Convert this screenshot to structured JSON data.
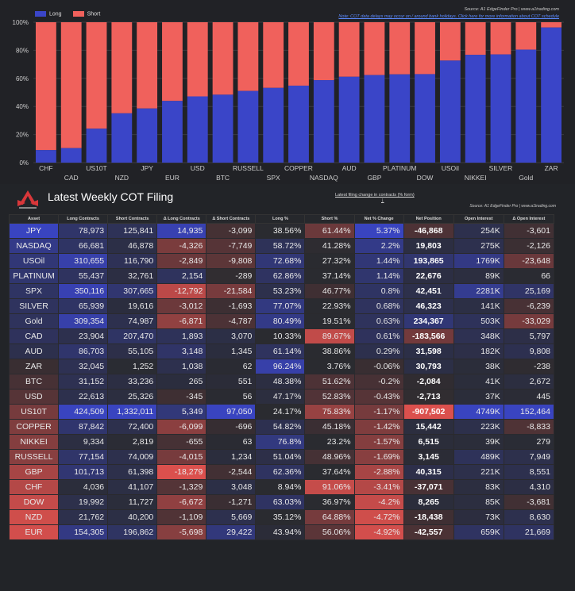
{
  "colors": {
    "long": "#3a45c8",
    "short": "#f0615c",
    "bg": "#212226"
  },
  "chart_data": {
    "type": "bar",
    "stacked": true,
    "categories": [
      "CHF",
      "CAD",
      "US10T",
      "NZD",
      "JPY",
      "EUR",
      "USD",
      "BTC",
      "RUSSELL",
      "SPX",
      "COPPER",
      "NASDAQ",
      "AUD",
      "GBP",
      "PLATINUM",
      "DOW",
      "USOil",
      "NIKKEI",
      "SILVER",
      "Gold",
      "ZAR"
    ],
    "series": [
      {
        "name": "Long",
        "values": [
          8.94,
          10.33,
          24.17,
          35.12,
          38.56,
          43.94,
          47.17,
          48.38,
          51.04,
          53.23,
          54.82,
          58.72,
          61.14,
          62.36,
          62.86,
          63.03,
          72.68,
          76.8,
          77.07,
          80.49,
          96.24
        ]
      },
      {
        "name": "Short",
        "values": [
          91.06,
          89.67,
          75.83,
          64.88,
          61.44,
          56.06,
          52.83,
          51.62,
          48.96,
          46.77,
          45.18,
          41.28,
          38.86,
          37.64,
          37.14,
          36.97,
          27.32,
          23.2,
          22.93,
          19.51,
          3.76
        ]
      }
    ],
    "ylim": [
      0,
      100
    ],
    "yticks": [
      "0%",
      "20%",
      "40%",
      "60%",
      "80%",
      "100%"
    ],
    "legend": [
      "Long",
      "Short"
    ]
  },
  "sources": {
    "chart_source": "Source: A1 EdgeFinder Pro | www.a1trading.com",
    "chart_note": "Note: COT data delays may occur on / around bank holidays. Click here for more information about COT schedule",
    "table_source": "Source: A1 EdgeFinder Pro | www.a1trading.com"
  },
  "table": {
    "title": "Latest Weekly COT Filing",
    "change_note": "Latest filing change in contracts (% form)",
    "arrow": "↓",
    "columns": [
      "Asset",
      "Long Contracts",
      "Short Contracts",
      "Δ Long Contracts",
      "Δ Short Contracts",
      "Long %",
      "Short %",
      "Net % Change",
      "Net Position",
      "Open Interest",
      "Δ Open Interest"
    ],
    "rows": [
      [
        "JPY",
        "78,973",
        "125,841",
        "14,935",
        "-3,099",
        "38.56%",
        "61.44%",
        "5.37%",
        "-46,868",
        "254K",
        "-3,601"
      ],
      [
        "NASDAQ",
        "66,681",
        "46,878",
        "-4,326",
        "-7,749",
        "58.72%",
        "41.28%",
        "2.2%",
        "19,803",
        "275K",
        "-2,126"
      ],
      [
        "USOil",
        "310,655",
        "116,790",
        "-2,849",
        "-9,808",
        "72.68%",
        "27.32%",
        "1.44%",
        "193,865",
        "1769K",
        "-23,648"
      ],
      [
        "PLATINUM",
        "55,437",
        "32,761",
        "2,154",
        "-289",
        "62.86%",
        "37.14%",
        "1.14%",
        "22,676",
        "89K",
        "66"
      ],
      [
        "SPX",
        "350,116",
        "307,665",
        "-12,792",
        "-21,584",
        "53.23%",
        "46.77%",
        "0.8%",
        "42,451",
        "2281K",
        "25,169"
      ],
      [
        "SILVER",
        "65,939",
        "19,616",
        "-3,012",
        "-1,693",
        "77.07%",
        "22.93%",
        "0.68%",
        "46,323",
        "141K",
        "-6,239"
      ],
      [
        "Gold",
        "309,354",
        "74,987",
        "-6,871",
        "-4,787",
        "80.49%",
        "19.51%",
        "0.63%",
        "234,367",
        "503K",
        "-33,029"
      ],
      [
        "CAD",
        "23,904",
        "207,470",
        "1,893",
        "3,070",
        "10.33%",
        "89.67%",
        "0.61%",
        "-183,566",
        "348K",
        "5,797"
      ],
      [
        "AUD",
        "86,703",
        "55,105",
        "3,148",
        "1,345",
        "61.14%",
        "38.86%",
        "0.29%",
        "31,598",
        "182K",
        "9,808"
      ],
      [
        "ZAR",
        "32,045",
        "1,252",
        "1,038",
        "62",
        "96.24%",
        "3.76%",
        "-0.06%",
        "30,793",
        "38K",
        "-238"
      ],
      [
        "BTC",
        "31,152",
        "33,236",
        "265",
        "551",
        "48.38%",
        "51.62%",
        "-0.2%",
        "-2,084",
        "41K",
        "2,672"
      ],
      [
        "USD",
        "22,613",
        "25,326",
        "-345",
        "56",
        "47.17%",
        "52.83%",
        "-0.43%",
        "-2,713",
        "37K",
        "445"
      ],
      [
        "US10T",
        "424,509",
        "1,332,011",
        "5,349",
        "97,050",
        "24.17%",
        "75.83%",
        "-1.17%",
        "-907,502",
        "4749K",
        "152,464"
      ],
      [
        "COPPER",
        "87,842",
        "72,400",
        "-6,099",
        "-696",
        "54.82%",
        "45.18%",
        "-1.42%",
        "15,442",
        "223K",
        "-8,833"
      ],
      [
        "NIKKEI",
        "9,334",
        "2,819",
        "-655",
        "63",
        "76.8%",
        "23.2%",
        "-1.57%",
        "6,515",
        "39K",
        "279"
      ],
      [
        "RUSSELL",
        "77,154",
        "74,009",
        "-4,015",
        "1,234",
        "51.04%",
        "48.96%",
        "-1.69%",
        "3,145",
        "489K",
        "7,949"
      ],
      [
        "GBP",
        "101,713",
        "61,398",
        "-18,279",
        "-2,544",
        "62.36%",
        "37.64%",
        "-2.88%",
        "40,315",
        "221K",
        "8,551"
      ],
      [
        "CHF",
        "4,036",
        "41,107",
        "-1,329",
        "3,048",
        "8.94%",
        "91.06%",
        "-3.41%",
        "-37,071",
        "83K",
        "4,310"
      ],
      [
        "DOW",
        "19,992",
        "11,727",
        "-6,672",
        "-1,271",
        "63.03%",
        "36.97%",
        "-4.2%",
        "8,265",
        "85K",
        "-3,681"
      ],
      [
        "NZD",
        "21,762",
        "40,200",
        "-1,109",
        "5,669",
        "35.12%",
        "64.88%",
        "-4.72%",
        "-18,438",
        "73K",
        "8,630"
      ],
      [
        "EUR",
        "154,305",
        "196,862",
        "-5,698",
        "29,422",
        "43.94%",
        "56.06%",
        "-4.92%",
        "-42,557",
        "659K",
        "21,669"
      ]
    ]
  }
}
